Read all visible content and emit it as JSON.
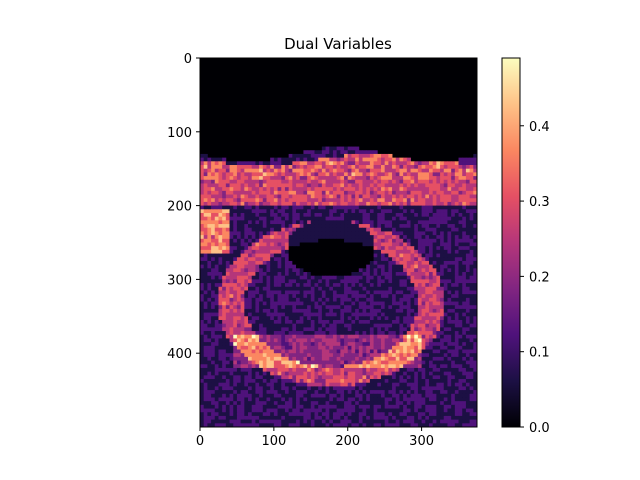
{
  "chart_data": {
    "type": "heatmap",
    "title": "Dual Variables",
    "xlabel": "",
    "ylabel": "",
    "xlim": [
      0,
      375
    ],
    "ylim": [
      500,
      0
    ],
    "x_ticks": [
      0,
      100,
      200,
      300
    ],
    "x_tick_labels": [
      "0",
      "100",
      "200",
      "300"
    ],
    "y_ticks": [
      0,
      100,
      200,
      300,
      400
    ],
    "y_tick_labels": [
      "0",
      "100",
      "200",
      "300",
      "400"
    ],
    "colormap": "magma",
    "colorbar": {
      "range": [
        0.0,
        0.49
      ],
      "ticks": [
        0.0,
        0.1,
        0.2,
        0.3,
        0.4
      ],
      "tick_labels": [
        "0.0",
        "0.1",
        "0.2",
        "0.3",
        "0.4"
      ],
      "colors": [
        "#000004",
        "#1c1044",
        "#4f127b",
        "#812581",
        "#b5367a",
        "#e55064",
        "#fb8761",
        "#fec287",
        "#fcfdbf"
      ]
    },
    "grid": false,
    "image_description_regions": {
      "top_band_zero_rows": [
        0,
        125
      ],
      "bright_band_rows": [
        130,
        200
      ],
      "notes": "low values (near 0) dominate; bright streaks up to ~0.45 along edges"
    }
  }
}
